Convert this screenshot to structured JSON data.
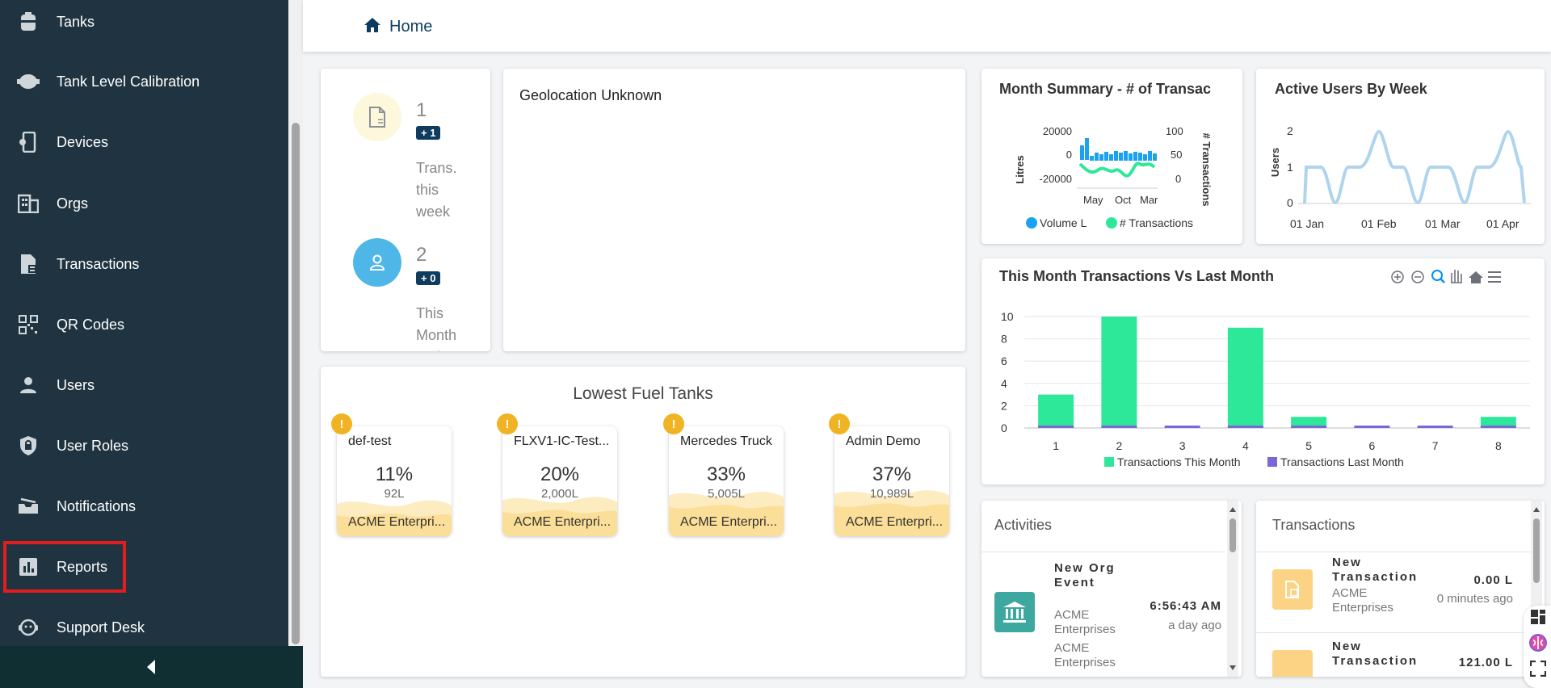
{
  "sidebar": {
    "items": [
      {
        "label": "Tanks",
        "icon": "tank-icon"
      },
      {
        "label": "Tank Level Calibration",
        "icon": "calibration-icon"
      },
      {
        "label": "Devices",
        "icon": "device-icon"
      },
      {
        "label": "Orgs",
        "icon": "building-icon"
      },
      {
        "label": "Transactions",
        "icon": "transaction-doc-icon"
      },
      {
        "label": "QR Codes",
        "icon": "qr-code-icon"
      },
      {
        "label": "Users",
        "icon": "user-icon"
      },
      {
        "label": "User Roles",
        "icon": "shield-lock-icon"
      },
      {
        "label": "Notifications",
        "icon": "inbox-icon"
      },
      {
        "label": "Reports",
        "icon": "bar-chart-icon"
      },
      {
        "label": "Support Desk",
        "icon": "support-icon"
      }
    ]
  },
  "header": {
    "home_label": "Home"
  },
  "stats": {
    "trans": {
      "count": "1",
      "delta": "+ 1",
      "label": "Trans. this week"
    },
    "active": {
      "count": "2",
      "delta": "+ 0",
      "label": "This Month Active"
    }
  },
  "map": {
    "status": "Geolocation Unknown"
  },
  "tanks": {
    "title": "Lowest Fuel Tanks",
    "items": [
      {
        "name": "def-test",
        "percent": "11%",
        "litres": "92L",
        "org": "ACME Enterpri...",
        "level": 0.11
      },
      {
        "name": "FLXV1-IC-Test...",
        "percent": "20%",
        "litres": "2,000L",
        "org": "ACME Enterpri...",
        "level": 0.2
      },
      {
        "name": "Mercedes Truck",
        "percent": "33%",
        "litres": "5,005L",
        "org": "ACME Enterpri...",
        "level": 0.33
      },
      {
        "name": "Admin Demo",
        "percent": "37%",
        "litres": "10,989L",
        "org": "ACME Enterpri...",
        "level": 0.37
      }
    ]
  },
  "month_summary": {
    "title": "Month Summary - # of Transac",
    "ylabel_left": "Litres",
    "ylabel_right": "# Transactions",
    "left_ticks": [
      "20000",
      "0",
      "-20000"
    ],
    "right_ticks": [
      "100",
      "50",
      "0"
    ],
    "x_ticks": [
      "May",
      "Oct",
      "Mar"
    ],
    "legend": [
      "Volume L",
      "# Transactions"
    ]
  },
  "active_users": {
    "title": "Active Users By Week",
    "ylabel": "Users",
    "y_ticks": [
      "2",
      "1",
      "0"
    ],
    "x_ticks": [
      "01 Jan",
      "01 Feb",
      "01 Mar",
      "01 Apr"
    ]
  },
  "chart_data": [
    {
      "type": "bar",
      "title": "This Month Transactions Vs Last Month",
      "categories": [
        "1",
        "2",
        "3",
        "4",
        "5",
        "6",
        "7",
        "8"
      ],
      "series": [
        {
          "name": "Transactions This Month",
          "values": [
            3,
            10,
            0,
            9,
            1,
            0,
            0,
            1
          ],
          "color": "#2ee89a"
        },
        {
          "name": "Transactions Last Month",
          "values": [
            0,
            0,
            0,
            0,
            0,
            0,
            0,
            0
          ],
          "color": "#7b68d8"
        }
      ],
      "ylim": [
        0,
        10
      ],
      "y_ticks": [
        "10",
        "8",
        "6",
        "4",
        "2",
        "0"
      ],
      "grid": true,
      "legend_position": "bottom"
    }
  ],
  "activities": {
    "title": "Activities",
    "item": {
      "title": "New Org Event",
      "org": "ACME Enterprises",
      "time": "6:56:43 AM",
      "ago": "a day ago",
      "org2": "ACME Enterprises"
    }
  },
  "transactions": {
    "title": "Transactions",
    "items": [
      {
        "title": "New Transaction",
        "org": "ACME Enterprises",
        "amount": "0.00 L",
        "ago": "0 minutes ago"
      },
      {
        "title": "New Transaction",
        "amount": "121.00 L"
      }
    ]
  },
  "colors": {
    "sidebar": "#1f3440",
    "accent": "#0f3c5e",
    "green": "#2ee89a",
    "purple": "#7b68d8",
    "tank_fill": "#fbe3a3"
  }
}
